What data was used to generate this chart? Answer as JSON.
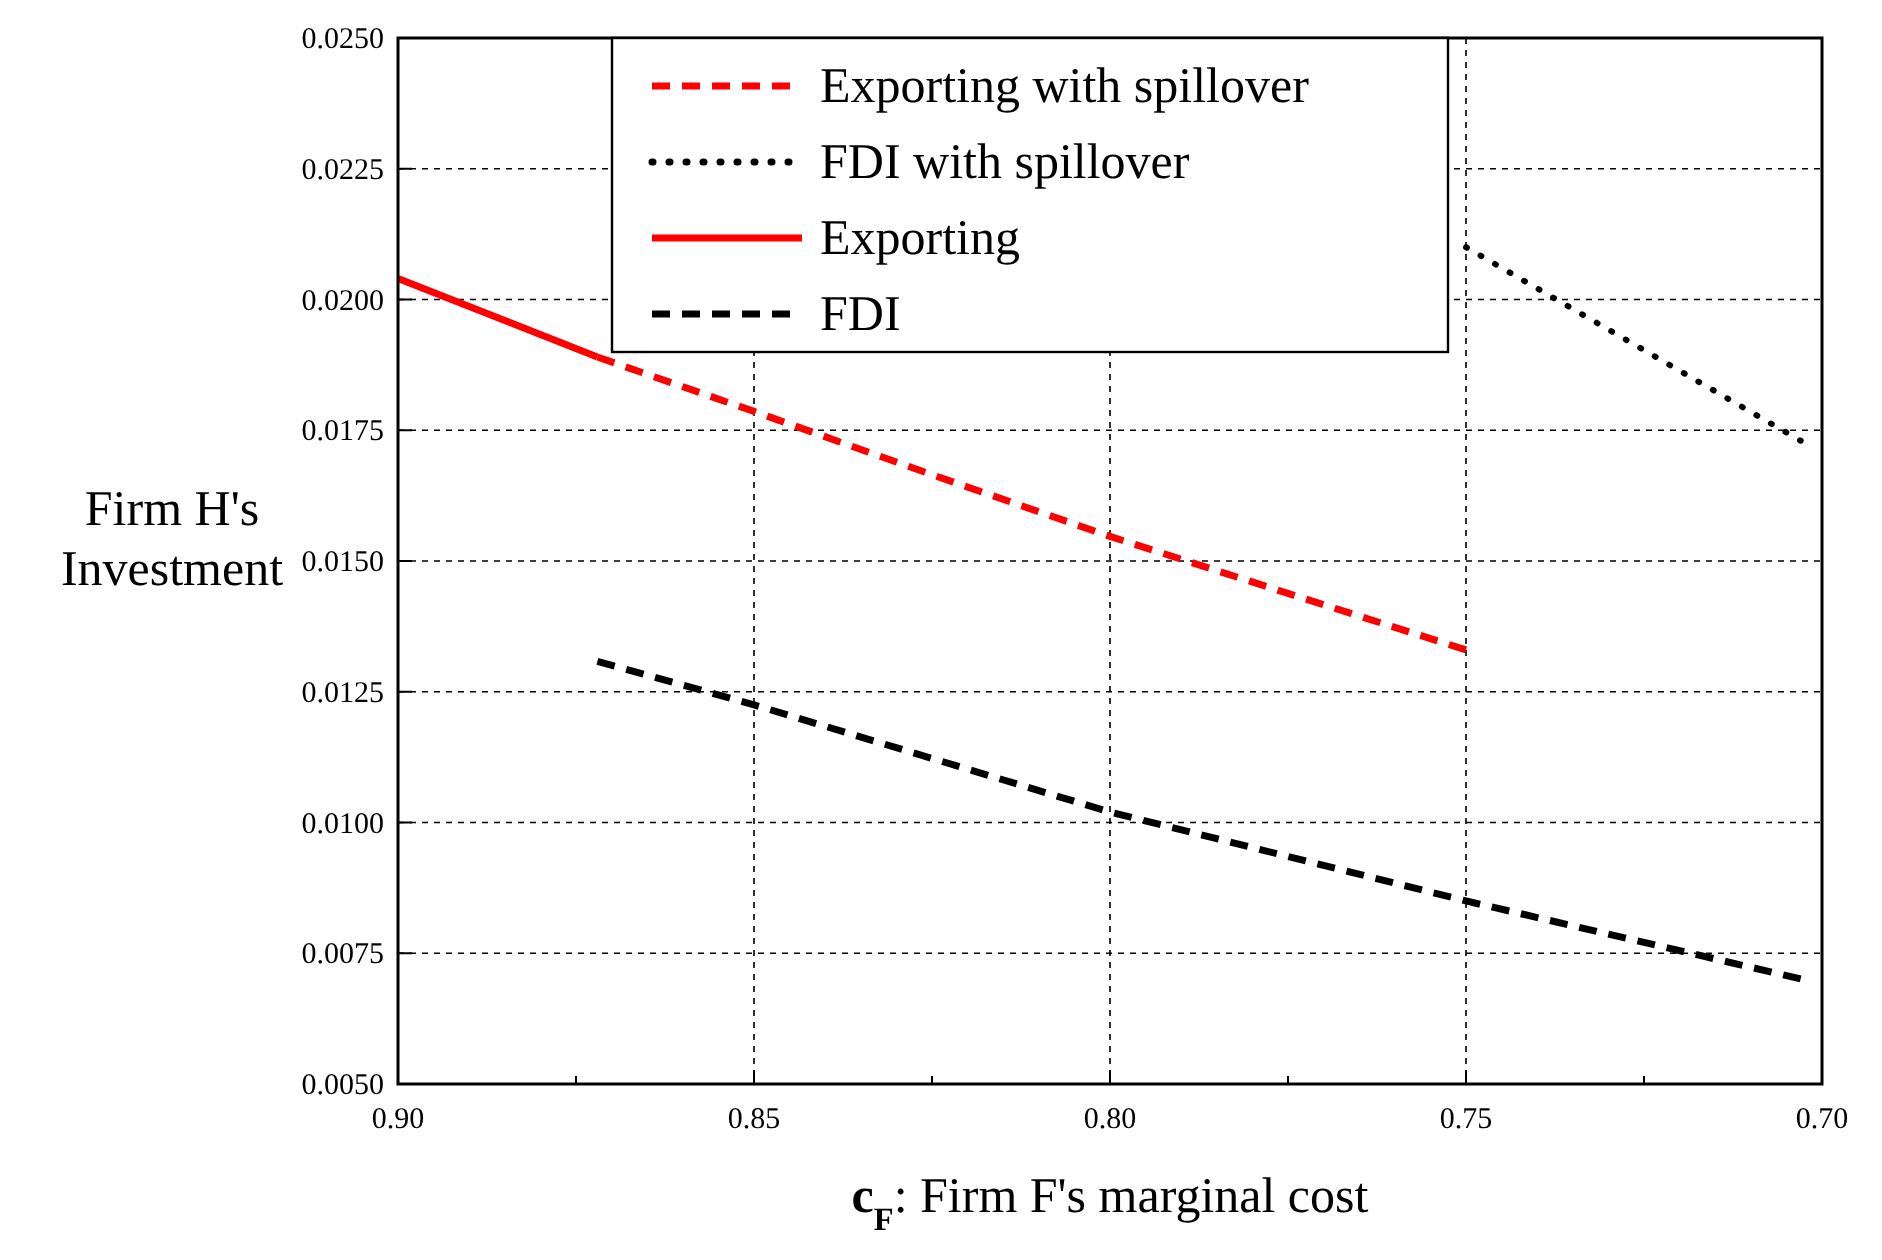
{
  "chart_data": {
    "type": "line",
    "xlabel": "c$_{F}$: Firm F's marginal cost",
    "ylabel": "Firm H's\nInvestment",
    "xlim": [
      0.9,
      0.7
    ],
    "ylim": [
      0.005,
      0.025
    ],
    "xticks": [
      {
        "value": 0.9,
        "label": "0.90"
      },
      {
        "value": 0.875,
        "label": null
      },
      {
        "value": 0.85,
        "label": "0.85"
      },
      {
        "value": 0.825,
        "label": null
      },
      {
        "value": 0.8,
        "label": "0.80"
      },
      {
        "value": 0.775,
        "label": null
      },
      {
        "value": 0.75,
        "label": "0.75"
      },
      {
        "value": 0.725,
        "label": null
      },
      {
        "value": 0.7,
        "label": "0.70"
      }
    ],
    "yticks": [
      {
        "value": 0.005,
        "label": "0.0050"
      },
      {
        "value": 0.0075,
        "label": "0.0075"
      },
      {
        "value": 0.01,
        "label": "0.0100"
      },
      {
        "value": 0.0125,
        "label": "0.0125"
      },
      {
        "value": 0.015,
        "label": "0.0150"
      },
      {
        "value": 0.0175,
        "label": "0.0175"
      },
      {
        "value": 0.02,
        "label": "0.0200"
      },
      {
        "value": 0.0225,
        "label": "0.0225"
      },
      {
        "value": 0.025,
        "label": "0.0250"
      }
    ],
    "grid": true,
    "legend": "top",
    "series": [
      {
        "name": "Exporting with spillover",
        "color": "#ff0000",
        "line_style": "dashed",
        "x": [
          0.872,
          0.85,
          0.825,
          0.8,
          0.775,
          0.75
        ],
        "values": [
          0.0189,
          0.01786,
          0.01665,
          0.01547,
          0.01438,
          0.0133
        ]
      },
      {
        "name": "FDI with spillover",
        "color": "#000000",
        "line_style": "dotted",
        "x": [
          0.75,
          0.703
        ],
        "values": [
          0.021,
          0.0173
        ]
      },
      {
        "name": "Exporting",
        "color": "#ff0000",
        "line_style": "solid",
        "x": [
          0.9,
          0.885,
          0.872
        ],
        "values": [
          0.0204,
          0.0196,
          0.0189
        ]
      },
      {
        "name": "FDI",
        "color": "#000000",
        "line_style": "dashed",
        "x": [
          0.872,
          0.85,
          0.8,
          0.75,
          0.703
        ],
        "values": [
          0.01308,
          0.01225,
          0.0102,
          0.0085,
          0.00701
        ]
      }
    ]
  }
}
